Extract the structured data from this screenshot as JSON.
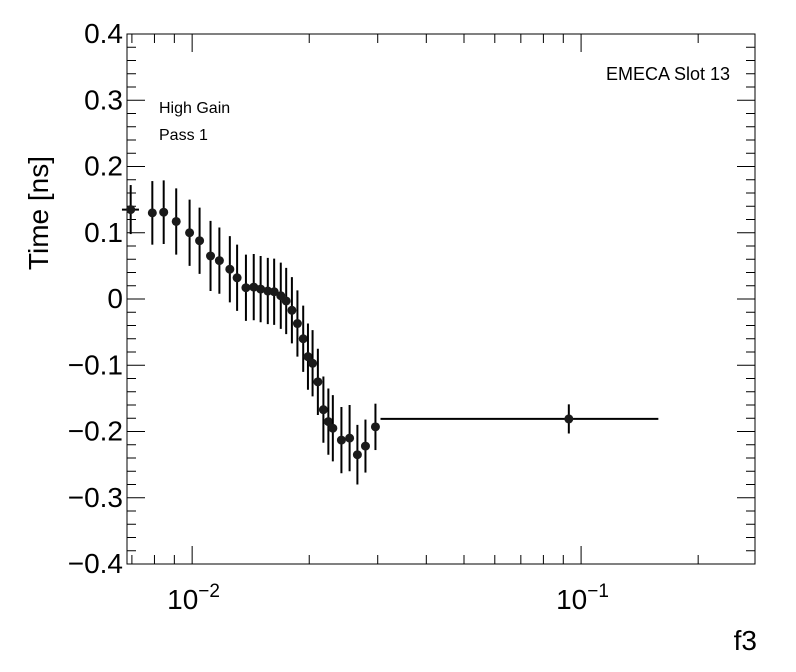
{
  "chart_data": {
    "type": "scatter",
    "x_scale": "log",
    "xlim": [
      0.0068,
      0.28
    ],
    "ylim": [
      -0.4,
      0.4
    ],
    "xlabel": "f3",
    "ylabel": "Time [ns]",
    "x_tick_labels": [
      "10^-2",
      "10^-1"
    ],
    "x_ticks": [
      {
        "value": 0.01,
        "base": "10",
        "exp": "−2"
      },
      {
        "value": 0.1,
        "base": "10",
        "exp": "−1"
      }
    ],
    "y_ticks": [
      {
        "value": 0.4,
        "label": "0.4"
      },
      {
        "value": 0.3,
        "label": "0.3"
      },
      {
        "value": 0.2,
        "label": "0.2"
      },
      {
        "value": 0.1,
        "label": "0.1"
      },
      {
        "value": 0.0,
        "label": "0"
      },
      {
        "value": -0.1,
        "label": "−0.1"
      },
      {
        "value": -0.2,
        "label": "−0.2"
      },
      {
        "value": -0.3,
        "label": "−0.3"
      },
      {
        "value": -0.4,
        "label": "−0.4"
      }
    ],
    "annotations": {
      "top_right": "EMECA Slot 13",
      "line1": "High Gain",
      "line2": "Pass 1"
    },
    "series": [
      {
        "points": [
          {
            "x": 0.00695,
            "y": 0.135,
            "ylo": 0.098,
            "yhi": 0.172,
            "xlo": 0.0066,
            "xhi": 0.0073
          },
          {
            "x": 0.0079,
            "y": 0.13,
            "ylo": 0.082,
            "yhi": 0.178,
            "xlo": 0.00785,
            "xhi": 0.00795
          },
          {
            "x": 0.00845,
            "y": 0.131,
            "ylo": 0.083,
            "yhi": 0.179,
            "xlo": 0.0084,
            "xhi": 0.0085
          },
          {
            "x": 0.0091,
            "y": 0.117,
            "ylo": 0.067,
            "yhi": 0.167,
            "xlo": 0.00905,
            "xhi": 0.00915
          },
          {
            "x": 0.00985,
            "y": 0.1,
            "ylo": 0.05,
            "yhi": 0.15,
            "xlo": 0.0098,
            "xhi": 0.0099
          },
          {
            "x": 0.01045,
            "y": 0.088,
            "ylo": 0.038,
            "yhi": 0.138,
            "xlo": 0.0104,
            "xhi": 0.0105
          },
          {
            "x": 0.01115,
            "y": 0.065,
            "ylo": 0.012,
            "yhi": 0.118,
            "xlo": 0.0111,
            "xhi": 0.0112
          },
          {
            "x": 0.01175,
            "y": 0.058,
            "ylo": 0.008,
            "yhi": 0.108,
            "xlo": 0.0117,
            "xhi": 0.0118
          },
          {
            "x": 0.0125,
            "y": 0.045,
            "ylo": -0.005,
            "yhi": 0.095,
            "xlo": 0.01245,
            "xhi": 0.01255
          },
          {
            "x": 0.01305,
            "y": 0.032,
            "ylo": -0.018,
            "yhi": 0.082,
            "xlo": 0.013,
            "xhi": 0.0131
          },
          {
            "x": 0.01375,
            "y": 0.017,
            "ylo": -0.033,
            "yhi": 0.067,
            "xlo": 0.0137,
            "xhi": 0.0138
          },
          {
            "x": 0.0144,
            "y": 0.018,
            "ylo": -0.032,
            "yhi": 0.068,
            "xlo": 0.01435,
            "xhi": 0.01445
          },
          {
            "x": 0.015,
            "y": 0.015,
            "ylo": -0.035,
            "yhi": 0.065,
            "xlo": 0.01495,
            "xhi": 0.01505
          },
          {
            "x": 0.01565,
            "y": 0.012,
            "ylo": -0.038,
            "yhi": 0.062,
            "xlo": 0.0156,
            "xhi": 0.0157
          },
          {
            "x": 0.01625,
            "y": 0.011,
            "ylo": -0.039,
            "yhi": 0.061,
            "xlo": 0.0162,
            "xhi": 0.0163
          },
          {
            "x": 0.0169,
            "y": 0.005,
            "ylo": -0.045,
            "yhi": 0.055,
            "xlo": 0.01685,
            "xhi": 0.01695
          },
          {
            "x": 0.01745,
            "y": -0.003,
            "ylo": -0.053,
            "yhi": 0.047,
            "xlo": 0.0174,
            "xhi": 0.0175
          },
          {
            "x": 0.01805,
            "y": -0.017,
            "ylo": -0.067,
            "yhi": 0.033,
            "xlo": 0.018,
            "xhi": 0.0181
          },
          {
            "x": 0.01865,
            "y": -0.037,
            "ylo": -0.087,
            "yhi": 0.013,
            "xlo": 0.0186,
            "xhi": 0.0187
          },
          {
            "x": 0.0193,
            "y": -0.06,
            "ylo": -0.11,
            "yhi": -0.01,
            "xlo": 0.01925,
            "xhi": 0.01935
          },
          {
            "x": 0.01985,
            "y": -0.087,
            "ylo": -0.137,
            "yhi": -0.037,
            "xlo": 0.0198,
            "xhi": 0.0199
          },
          {
            "x": 0.0204,
            "y": -0.097,
            "ylo": -0.147,
            "yhi": -0.047,
            "xlo": 0.02035,
            "xhi": 0.02045
          },
          {
            "x": 0.02105,
            "y": -0.125,
            "ylo": -0.175,
            "yhi": -0.075,
            "xlo": 0.021,
            "xhi": 0.0211
          },
          {
            "x": 0.02175,
            "y": -0.167,
            "ylo": -0.217,
            "yhi": -0.117,
            "xlo": 0.0217,
            "xhi": 0.0218
          },
          {
            "x": 0.0224,
            "y": -0.185,
            "ylo": -0.235,
            "yhi": -0.135,
            "xlo": 0.02235,
            "xhi": 0.02245
          },
          {
            "x": 0.023,
            "y": -0.195,
            "ylo": -0.245,
            "yhi": -0.145,
            "xlo": 0.02295,
            "xhi": 0.02305
          },
          {
            "x": 0.0242,
            "y": -0.213,
            "ylo": -0.263,
            "yhi": -0.163,
            "xlo": 0.02415,
            "xhi": 0.02425
          },
          {
            "x": 0.0254,
            "y": -0.21,
            "ylo": -0.26,
            "yhi": -0.16,
            "xlo": 0.02535,
            "xhi": 0.02545
          },
          {
            "x": 0.0266,
            "y": -0.235,
            "ylo": -0.28,
            "yhi": -0.19,
            "xlo": 0.02655,
            "xhi": 0.02665
          },
          {
            "x": 0.0279,
            "y": -0.222,
            "ylo": -0.262,
            "yhi": -0.182,
            "xlo": 0.02785,
            "xhi": 0.02795
          },
          {
            "x": 0.0296,
            "y": -0.193,
            "ylo": -0.228,
            "yhi": -0.158,
            "xlo": 0.0292,
            "xhi": 0.03
          },
          {
            "x": 0.093,
            "y": -0.181,
            "ylo": -0.203,
            "yhi": -0.159,
            "xlo": 0.0305,
            "xhi": 0.158
          }
        ]
      }
    ]
  }
}
